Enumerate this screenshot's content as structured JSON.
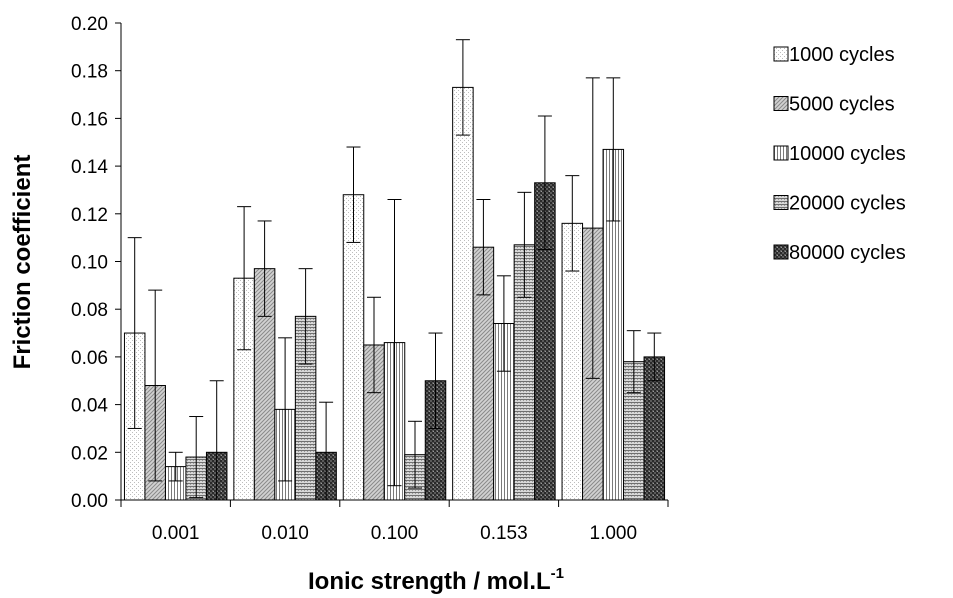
{
  "chart_data": {
    "type": "bar",
    "title": "",
    "xlabel": "Ionic strength / mol.L",
    "xlabel_superscript": "-1",
    "ylabel": "Friction coefficient",
    "ylim": [
      0,
      0.2
    ],
    "y_ticks": [
      "0.00",
      "0.02",
      "0.04",
      "0.06",
      "0.08",
      "0.10",
      "0.12",
      "0.14",
      "0.16",
      "0.18",
      "0.20"
    ],
    "grid": false,
    "legend_position": "right",
    "categories": [
      "0.001",
      "0.010",
      "0.100",
      "0.153",
      "1.000"
    ],
    "series": [
      {
        "name": "1000 cycles",
        "pattern": "dots-light",
        "values": [
          0.07,
          0.093,
          0.128,
          0.173,
          0.116
        ],
        "error": [
          0.04,
          0.03,
          0.02,
          0.02,
          0.02
        ]
      },
      {
        "name": "5000 cycles",
        "pattern": "diagonal",
        "values": [
          0.048,
          0.097,
          0.065,
          0.106,
          0.114
        ],
        "error": [
          0.04,
          0.02,
          0.02,
          0.02,
          0.063
        ]
      },
      {
        "name": "10000 cycles",
        "pattern": "vertical",
        "values": [
          0.014,
          0.038,
          0.066,
          0.074,
          0.147
        ],
        "error": [
          0.006,
          0.03,
          0.06,
          0.02,
          0.03
        ]
      },
      {
        "name": "20000 cycles",
        "pattern": "horizontal",
        "values": [
          0.018,
          0.077,
          0.019,
          0.107,
          0.058
        ],
        "error": [
          0.017,
          0.02,
          0.014,
          0.022,
          0.013
        ]
      },
      {
        "name": "80000 cycles",
        "pattern": "checker",
        "values": [
          0.02,
          0.02,
          0.05,
          0.133,
          0.06
        ],
        "error": [
          0.03,
          0.021,
          0.02,
          0.028,
          0.01
        ]
      }
    ]
  }
}
